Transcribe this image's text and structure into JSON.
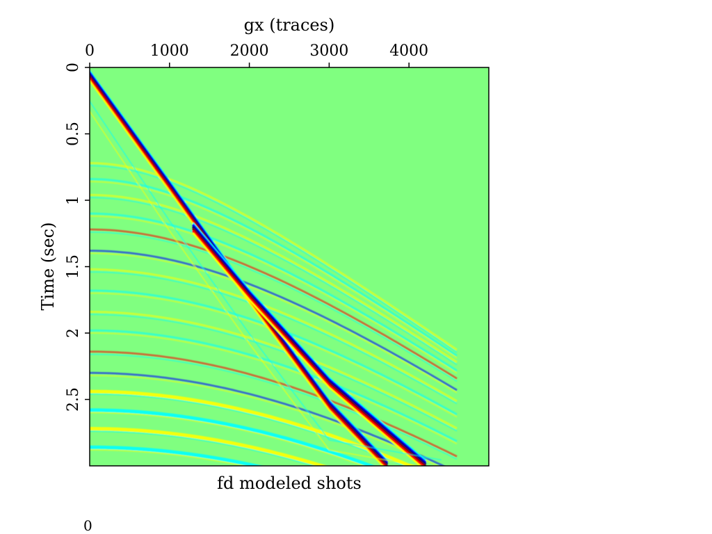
{
  "page": {
    "number": "0"
  },
  "chart_data": {
    "type": "heatmap",
    "title": "fd modeled shots",
    "xlabel": "gx (traces)",
    "ylabel": "Time (sec)",
    "xlim": [
      0,
      5000
    ],
    "ylim": [
      0,
      3
    ],
    "y_inverted": true,
    "x_axis_position": "top",
    "grid": false,
    "legend": "none",
    "x_ticks": [
      0,
      1000,
      2000,
      3000,
      4000
    ],
    "x_tick_labels": [
      "0",
      "1000",
      "2000",
      "3000",
      "4000"
    ],
    "y_ticks": [
      0,
      0.5,
      1,
      1.5,
      2,
      2.5
    ],
    "y_tick_labels": [
      "0",
      "0.5",
      "1",
      "1.5",
      "2",
      "2.5"
    ],
    "background_color": "#80ff80",
    "colormap": [
      "#00007f",
      "#0000ff",
      "#00ffff",
      "#80ff80",
      "#ffff00",
      "#ff0000",
      "#7f0000"
    ],
    "events": [
      {
        "name": "",
        "kind": "direct_arrival",
        "points": [
          [
            0,
            0.07
          ],
          [
            1000,
            0.9
          ],
          [
            2000,
            1.74
          ],
          [
            3000,
            2.55
          ],
          [
            3720,
            3.0
          ]
        ],
        "amplitude": 0.9
      },
      {
        "name": "",
        "kind": "dominant_linear_event",
        "points": [
          [
            1300,
            1.22
          ],
          [
            2000,
            1.72
          ],
          [
            3000,
            2.38
          ],
          [
            4200,
            3.0
          ]
        ],
        "amplitude": 1.0
      },
      {
        "name": "",
        "kind": "faint_linear_event",
        "points": [
          [
            0,
            0.3
          ],
          [
            1000,
            1.2
          ],
          [
            2000,
            2.05
          ],
          [
            3000,
            2.85
          ],
          [
            4400,
            3.0
          ]
        ],
        "amplitude": 0.3
      }
    ],
    "hyperbolic_reflections_t0": [
      0.72,
      0.84,
      0.96,
      1.1,
      1.22,
      1.38,
      1.52,
      1.68,
      1.84,
      1.98,
      2.14,
      2.3,
      2.44,
      2.58,
      2.72,
      2.86
    ],
    "hyperbolic_reflection_velocity": 2.3
  }
}
